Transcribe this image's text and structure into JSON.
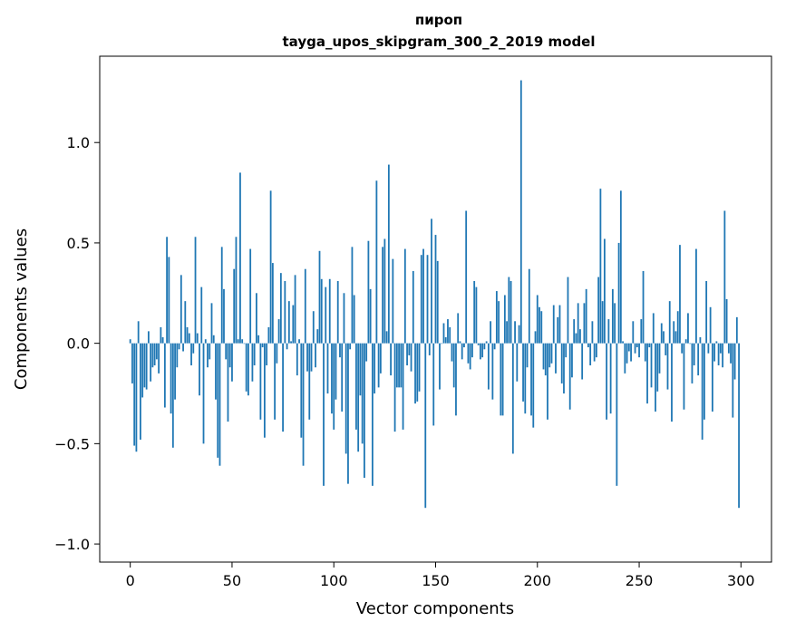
{
  "chart_data": {
    "type": "bar",
    "title": "пироп",
    "subtitle": "tayga_upos_skipgram_300_2_2019 model",
    "xlabel": "Vector components",
    "ylabel": "Components values",
    "xlim": [
      -15,
      315
    ],
    "ylim": [
      -1.09,
      1.43
    ],
    "xticks": [
      0,
      50,
      100,
      150,
      200,
      250,
      300
    ],
    "xtick_labels": [
      "0",
      "50",
      "100",
      "150",
      "200",
      "250",
      "300"
    ],
    "yticks": [
      -1.0,
      -0.5,
      0.0,
      0.5,
      1.0
    ],
    "ytick_labels": [
      "−1.0",
      "−0.5",
      "0.0",
      "0.5",
      "1.0"
    ],
    "grid": false,
    "bar_color": "#1f77b4",
    "x_start": 0,
    "values": [
      0.02,
      -0.2,
      -0.51,
      -0.54,
      0.11,
      -0.48,
      -0.27,
      -0.22,
      -0.23,
      0.06,
      -0.19,
      -0.12,
      -0.11,
      -0.08,
      -0.15,
      0.08,
      0.03,
      -0.32,
      0.53,
      0.43,
      -0.35,
      -0.52,
      -0.28,
      -0.12,
      -0.03,
      0.34,
      -0.04,
      0.21,
      0.08,
      0.05,
      -0.11,
      -0.05,
      0.53,
      0.05,
      -0.26,
      0.28,
      -0.5,
      0.02,
      -0.12,
      -0.08,
      0.2,
      0.04,
      -0.28,
      -0.57,
      -0.61,
      0.48,
      0.27,
      -0.08,
      -0.39,
      -0.12,
      -0.19,
      0.37,
      0.53,
      0.02,
      0.85,
      0.02,
      0.0,
      -0.24,
      -0.26,
      0.47,
      -0.19,
      -0.11,
      0.25,
      0.04,
      -0.38,
      -0.02,
      -0.47,
      -0.11,
      0.08,
      0.76,
      0.4,
      -0.38,
      -0.1,
      0.12,
      0.35,
      -0.44,
      0.31,
      -0.03,
      0.21,
      0.01,
      0.19,
      0.34,
      -0.16,
      0.02,
      -0.47,
      -0.61,
      0.37,
      -0.14,
      -0.38,
      -0.14,
      0.16,
      -0.12,
      0.07,
      0.46,
      0.32,
      -0.71,
      0.28,
      -0.25,
      0.32,
      -0.35,
      -0.43,
      -0.28,
      0.31,
      -0.07,
      -0.34,
      0.25,
      -0.55,
      -0.7,
      -0.03,
      0.48,
      0.24,
      -0.43,
      -0.54,
      -0.26,
      -0.5,
      -0.67,
      -0.09,
      0.51,
      0.27,
      -0.71,
      -0.25,
      0.81,
      -0.22,
      -0.15,
      0.48,
      0.52,
      0.06,
      0.89,
      -0.16,
      0.42,
      -0.44,
      -0.22,
      -0.22,
      -0.22,
      -0.43,
      0.47,
      -0.11,
      -0.06,
      -0.14,
      0.36,
      -0.3,
      -0.29,
      -0.24,
      0.44,
      0.47,
      -0.82,
      0.44,
      -0.06,
      0.62,
      -0.41,
      0.54,
      0.41,
      -0.23,
      0.0,
      0.1,
      0.03,
      0.12,
      0.08,
      -0.09,
      -0.22,
      -0.36,
      0.15,
      0.01,
      -0.08,
      -0.02,
      0.66,
      -0.1,
      -0.13,
      -0.07,
      0.31,
      0.28,
      -0.01,
      -0.08,
      -0.07,
      -0.03,
      0.01,
      -0.23,
      0.11,
      -0.28,
      -0.03,
      0.26,
      0.21,
      -0.36,
      -0.36,
      0.24,
      0.11,
      0.33,
      0.31,
      -0.55,
      0.11,
      -0.19,
      0.09,
      1.31,
      -0.29,
      -0.35,
      -0.12,
      0.37,
      -0.36,
      -0.42,
      0.06,
      0.24,
      0.18,
      0.16,
      -0.13,
      -0.16,
      -0.38,
      -0.12,
      -0.1,
      0.19,
      -0.15,
      0.13,
      0.19,
      -0.2,
      -0.25,
      -0.07,
      0.33,
      -0.33,
      -0.17,
      0.12,
      0.05,
      0.2,
      0.07,
      -0.18,
      0.2,
      0.27,
      -0.02,
      -0.11,
      0.11,
      -0.09,
      -0.07,
      0.33,
      0.77,
      0.21,
      0.52,
      -0.38,
      0.12,
      -0.35,
      0.27,
      0.2,
      -0.71,
      0.5,
      0.76,
      0.01,
      -0.15,
      -0.1,
      -0.04,
      -0.09,
      0.11,
      -0.05,
      -0.02,
      -0.07,
      0.12,
      0.36,
      -0.09,
      -0.3,
      -0.02,
      -0.22,
      0.15,
      -0.34,
      -0.24,
      -0.15,
      0.1,
      0.06,
      -0.06,
      -0.23,
      0.21,
      -0.39,
      0.11,
      0.06,
      0.16,
      0.49,
      -0.05,
      -0.33,
      0.02,
      0.15,
      0.0,
      -0.2,
      -0.11,
      0.47,
      -0.16,
      0.03,
      -0.48,
      -0.38,
      0.31,
      -0.05,
      0.18,
      -0.34,
      -0.09,
      0.01,
      -0.11,
      -0.05,
      -0.12,
      0.66,
      0.22,
      -0.05,
      -0.1,
      -0.37,
      -0.18,
      0.13,
      -0.82
    ]
  }
}
